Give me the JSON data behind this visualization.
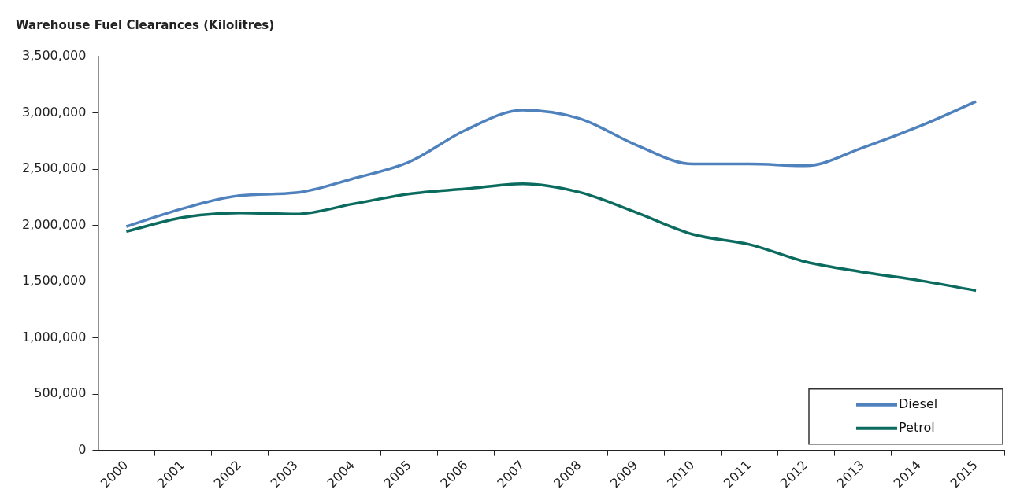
{
  "chart_data": {
    "type": "line",
    "title": "Warehouse Fuel Clearances (Kilolitres)",
    "categories": [
      "2000",
      "2001",
      "2002",
      "2003",
      "2004",
      "2005",
      "2006",
      "2007",
      "2008",
      "2009",
      "2010",
      "2011",
      "2012",
      "2013",
      "2014",
      "2015"
    ],
    "series": [
      {
        "name": "Diesel",
        "color": "#4f81bd",
        "values": [
          1990000,
          2150000,
          2265000,
          2290000,
          2415000,
          2565000,
          2850000,
          3025000,
          2950000,
          2715000,
          2545000,
          2545000,
          2530000,
          2690000,
          2880000,
          3100000
        ]
      },
      {
        "name": "Petrol",
        "color": "#0b6b5e",
        "values": [
          1945000,
          2070000,
          2110000,
          2100000,
          2190000,
          2280000,
          2325000,
          2370000,
          2295000,
          2115000,
          1920000,
          1830000,
          1675000,
          1585000,
          1510000,
          1420000
        ]
      }
    ],
    "ylim": [
      0,
      3500000
    ],
    "yticks": [
      0,
      {
        "value": 500000,
        "label": "500,000"
      },
      {
        "value": 1000000,
        "label": "1,000,000"
      },
      {
        "value": 1500000,
        "label": "1,500,000"
      },
      {
        "value": 2000000,
        "label": "2,000,000"
      },
      {
        "value": 2500000,
        "label": "2,500,000"
      },
      {
        "value": 3000000,
        "label": "3,000,000"
      },
      {
        "value": 3500000,
        "label": "3,500,000"
      }
    ],
    "grid": false,
    "legend": "bottom right",
    "marker": "none",
    "line_style": "solid"
  }
}
